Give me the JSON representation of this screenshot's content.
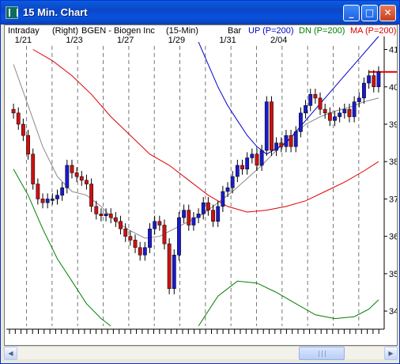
{
  "window": {
    "title": "15 Min. Chart",
    "buttons": {
      "minimize": "_",
      "maximize": "□",
      "close": "✕"
    }
  },
  "header": {
    "mode": "Intraday",
    "axis_side": "(Right)",
    "symbol": "BGEN - Biogen Inc",
    "interval": "(15-Min)",
    "style": "Bar",
    "up_label": "UP (P=200)",
    "dn_label": "DN (P=200)",
    "ma_label": "MA (P=200)"
  },
  "colors": {
    "up": "#0000cc",
    "dn": "#008000",
    "ma": "#dd0000",
    "thin": "#8a8a8a",
    "bar_up": "#1a1acc",
    "bar_down": "#cc1111",
    "last_price": "#ee0000"
  },
  "scrollbar": {
    "left_arrow": "◀",
    "right_arrow": "▶",
    "thumb_fraction": 0.81
  },
  "chart_data": {
    "type": "bar",
    "x_labels": [
      "1/21",
      "1/23",
      "1/27",
      "1/29",
      "1/31",
      "2/04"
    ],
    "y_ticks": [
      34,
      35,
      36,
      37,
      38,
      39,
      40,
      41
    ],
    "ylim": [
      33.6,
      41.35
    ],
    "last_price": 40.4,
    "series_close": [
      [
        0,
        39.3
      ],
      [
        1,
        39.0
      ],
      [
        2,
        38.7
      ],
      [
        3,
        38.2
      ],
      [
        4,
        37.4
      ],
      [
        5,
        37.0
      ],
      [
        6,
        36.9
      ],
      [
        7,
        37.0
      ],
      [
        8,
        37.0
      ],
      [
        9,
        37.1
      ],
      [
        10,
        37.3
      ],
      [
        11,
        37.9
      ],
      [
        12,
        37.7
      ],
      [
        13,
        37.6
      ],
      [
        14,
        37.5
      ],
      [
        15,
        37.4
      ],
      [
        16,
        36.8
      ],
      [
        17,
        36.6
      ],
      [
        18,
        36.55
      ],
      [
        19,
        36.6
      ],
      [
        20,
        36.5
      ],
      [
        21,
        36.4
      ],
      [
        22,
        36.2
      ],
      [
        23,
        36.0
      ],
      [
        24,
        35.9
      ],
      [
        25,
        35.7
      ],
      [
        26,
        35.5
      ],
      [
        27,
        35.7
      ],
      [
        28,
        36.2
      ],
      [
        29,
        36.4
      ],
      [
        30,
        36.3
      ],
      [
        31,
        35.8
      ],
      [
        32,
        34.6
      ],
      [
        33,
        35.5
      ],
      [
        34,
        36.5
      ],
      [
        35,
        36.7
      ],
      [
        36,
        36.3
      ],
      [
        37,
        36.5
      ],
      [
        38,
        36.6
      ],
      [
        39,
        36.9
      ],
      [
        40,
        36.7
      ],
      [
        41,
        36.4
      ],
      [
        42,
        36.8
      ],
      [
        43,
        37.2
      ],
      [
        44,
        37.3
      ],
      [
        45,
        37.6
      ],
      [
        46,
        37.9
      ],
      [
        47,
        37.8
      ],
      [
        48,
        38.1
      ],
      [
        49,
        38.2
      ],
      [
        50,
        37.9
      ],
      [
        51,
        38.3
      ],
      [
        52,
        39.6
      ],
      [
        53,
        38.3
      ],
      [
        54,
        38.5
      ],
      [
        55,
        38.4
      ],
      [
        56,
        38.7
      ],
      [
        57,
        38.4
      ],
      [
        58,
        38.8
      ],
      [
        59,
        39.3
      ],
      [
        60,
        39.5
      ],
      [
        61,
        39.8
      ],
      [
        62,
        39.7
      ],
      [
        63,
        39.4
      ],
      [
        64,
        39.3
      ],
      [
        65,
        39.1
      ],
      [
        66,
        39.2
      ],
      [
        67,
        39.3
      ],
      [
        68,
        39.4
      ],
      [
        69,
        39.2
      ],
      [
        70,
        39.6
      ],
      [
        71,
        39.7
      ],
      [
        72,
        40.1
      ],
      [
        73,
        40.3
      ],
      [
        74,
        40.0
      ],
      [
        75,
        40.4
      ]
    ],
    "series_up_band": [
      [
        52,
        38.2
      ],
      [
        56,
        38.5
      ],
      [
        60,
        39.1
      ],
      [
        64,
        39.7
      ],
      [
        68,
        40.3
      ],
      [
        72,
        40.9
      ],
      [
        75,
        41.35
      ]
    ],
    "series_up_band_left": [
      [
        38,
        41.2
      ],
      [
        40,
        40.6
      ],
      [
        42,
        40.0
      ],
      [
        44,
        39.5
      ],
      [
        46,
        39.1
      ],
      [
        48,
        38.7
      ],
      [
        50,
        38.4
      ],
      [
        52,
        38.2
      ]
    ],
    "series_ma": [
      [
        4,
        41.0
      ],
      [
        8,
        40.7
      ],
      [
        12,
        40.3
      ],
      [
        16,
        39.8
      ],
      [
        20,
        39.2
      ],
      [
        24,
        38.7
      ],
      [
        28,
        38.2
      ],
      [
        32,
        37.9
      ],
      [
        36,
        37.5
      ],
      [
        40,
        37.1
      ],
      [
        44,
        36.8
      ],
      [
        48,
        36.65
      ],
      [
        52,
        36.7
      ],
      [
        56,
        36.8
      ],
      [
        60,
        36.95
      ],
      [
        64,
        37.2
      ],
      [
        68,
        37.45
      ],
      [
        72,
        37.75
      ],
      [
        75,
        38.0
      ]
    ],
    "series_dn_band": [
      [
        0,
        37.8
      ],
      [
        3,
        37.1
      ],
      [
        6,
        36.2
      ],
      [
        9,
        35.4
      ],
      [
        12,
        34.8
      ],
      [
        15,
        34.2
      ],
      [
        18,
        33.8
      ],
      [
        20,
        33.6
      ]
    ],
    "series_dn_band_right": [
      [
        38,
        33.6
      ],
      [
        42,
        34.4
      ],
      [
        46,
        34.8
      ],
      [
        50,
        34.75
      ],
      [
        54,
        34.5
      ],
      [
        58,
        34.2
      ],
      [
        62,
        33.9
      ],
      [
        66,
        33.8
      ],
      [
        70,
        33.85
      ],
      [
        73,
        34.05
      ],
      [
        75,
        34.3
      ]
    ],
    "series_thin": [
      [
        0,
        40.6
      ],
      [
        3,
        39.5
      ],
      [
        6,
        38.4
      ],
      [
        9,
        37.6
      ],
      [
        12,
        37.2
      ],
      [
        15,
        37.1
      ],
      [
        18,
        36.8
      ],
      [
        21,
        36.4
      ],
      [
        24,
        36.15
      ],
      [
        27,
        35.95
      ],
      [
        30,
        36.0
      ],
      [
        33,
        36.2
      ],
      [
        36,
        36.4
      ],
      [
        39,
        36.6
      ],
      [
        42,
        36.9
      ],
      [
        45,
        37.2
      ],
      [
        48,
        37.55
      ],
      [
        51,
        37.9
      ],
      [
        54,
        38.3
      ],
      [
        57,
        38.65
      ],
      [
        60,
        39.0
      ],
      [
        63,
        39.2
      ],
      [
        66,
        39.35
      ],
      [
        69,
        39.45
      ],
      [
        72,
        39.6
      ],
      [
        75,
        39.7
      ]
    ]
  }
}
